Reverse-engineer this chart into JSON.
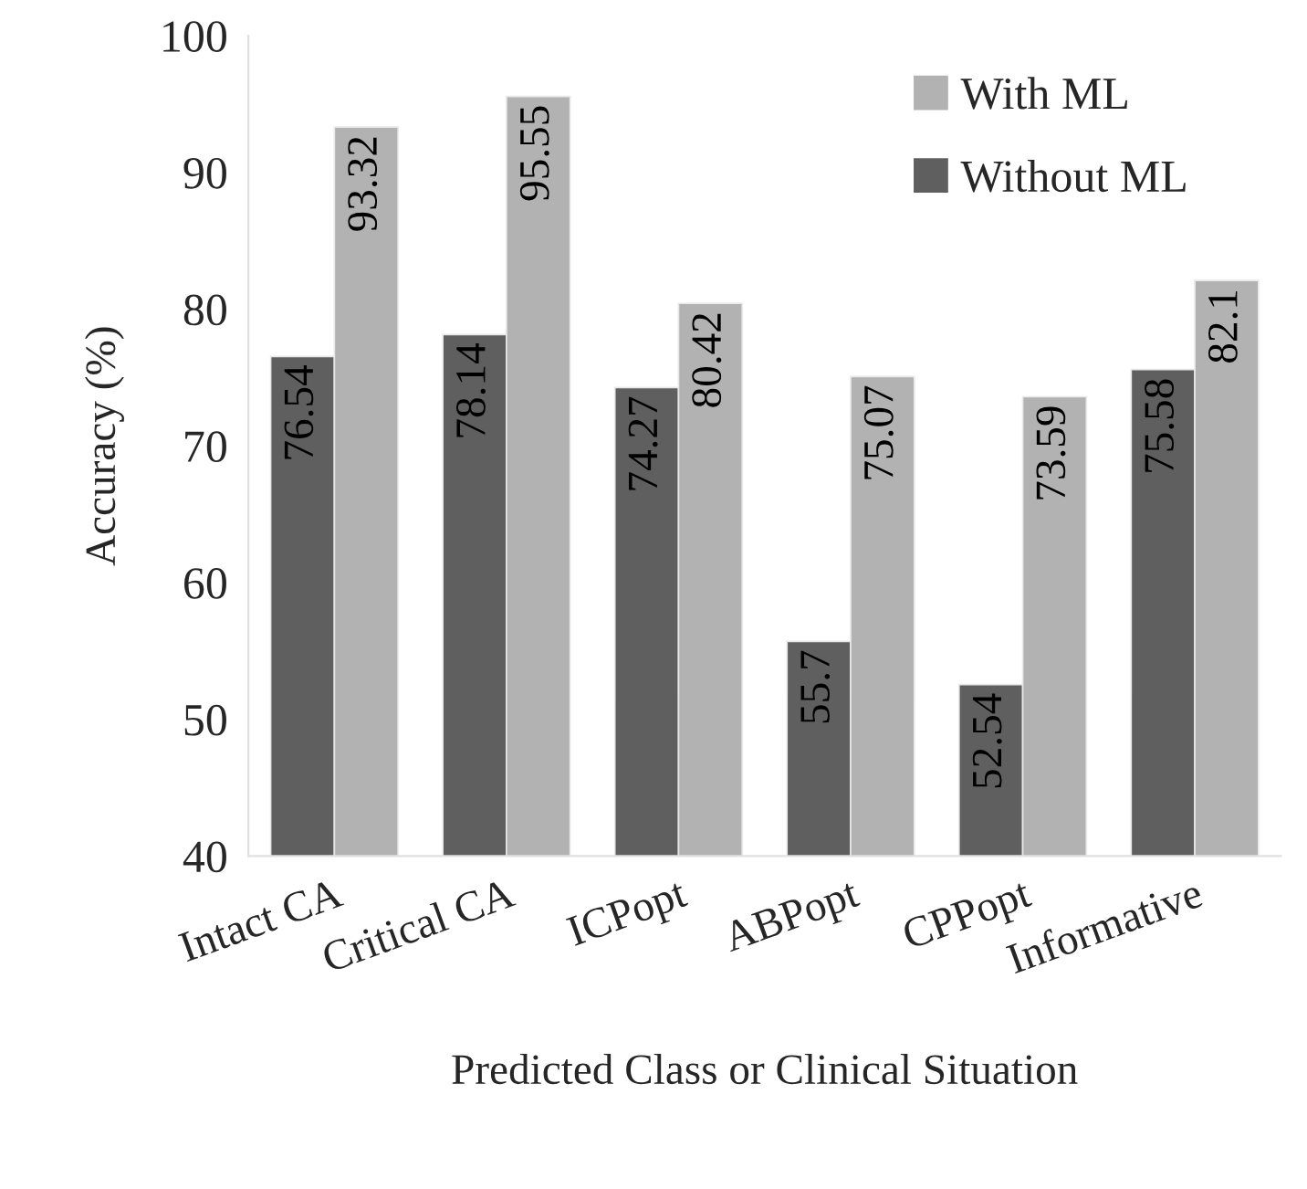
{
  "chart_data": {
    "type": "bar",
    "xlabel": "Predicted Class or Clinical Situation",
    "ylabel": "Accuracy (%)",
    "categories": [
      "Intact CA",
      "Critical CA",
      "ICPopt",
      "ABPopt",
      "CPPopt",
      "Informative"
    ],
    "series": [
      {
        "name": "Without ML",
        "color": "#5f5f5f",
        "values": [
          76.54,
          78.14,
          74.27,
          55.7,
          52.54,
          75.58
        ],
        "value_labels": [
          "76.54",
          "78.14",
          "74.27",
          "55.7",
          "52.54",
          "75.58"
        ]
      },
      {
        "name": "With ML",
        "color": "#b2b2b2",
        "values": [
          93.32,
          95.55,
          80.42,
          75.07,
          73.59,
          82.1
        ],
        "value_labels": [
          "93.32",
          "95.55",
          "80.42",
          "75.07",
          "73.59",
          "82.1"
        ]
      }
    ],
    "ylim": [
      40,
      100
    ],
    "yticks": [
      40,
      50,
      60,
      70,
      80,
      90,
      100
    ],
    "grid": false,
    "legend": "top right"
  }
}
